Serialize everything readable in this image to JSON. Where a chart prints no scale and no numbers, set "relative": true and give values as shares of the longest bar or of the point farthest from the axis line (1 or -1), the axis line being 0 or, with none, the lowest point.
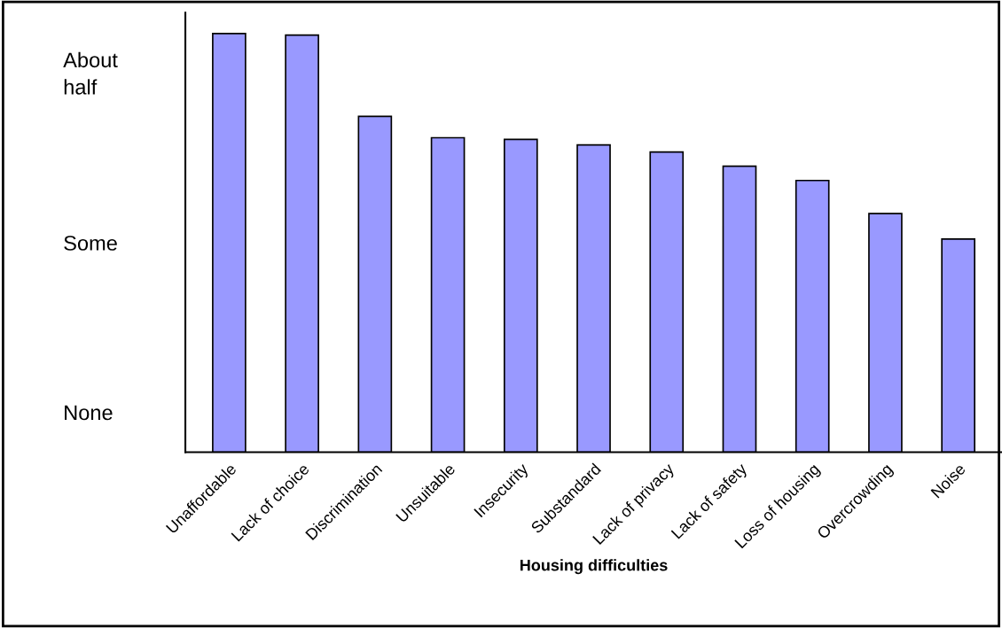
{
  "chart_data": {
    "type": "bar",
    "xlabel": "Housing difficulties",
    "relative": true,
    "categories": [
      "Unaffordable",
      "Lack of choice",
      "Discrimination",
      "Unsuitable",
      "Insecurity",
      "Substandard",
      "Lack of privacy",
      "Lack of safety",
      "Loss of housing",
      "Overcrowding",
      "Noise"
    ],
    "values": [
      1,
      0.996,
      0.802,
      0.751,
      0.747,
      0.734,
      0.717,
      0.683,
      0.649,
      0.57,
      0.509
    ],
    "color": "#9999ff",
    "annotations": [
      "About\nhalf",
      "Some",
      "None"
    ]
  }
}
